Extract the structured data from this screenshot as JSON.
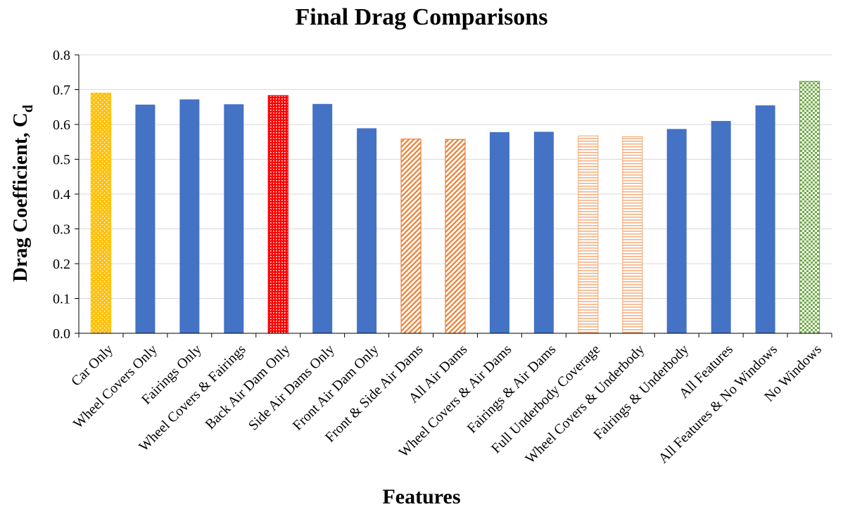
{
  "chart_data": {
    "type": "bar",
    "title": "Final Drag Comparisons",
    "xlabel": "Features",
    "ylabel": "Drag Coefficient, C",
    "ylabel_subscript": "d",
    "ylim": [
      0,
      0.8
    ],
    "yticks": [
      "0.0",
      "0.1",
      "0.2",
      "0.3",
      "0.4",
      "0.5",
      "0.6",
      "0.7",
      "0.8"
    ],
    "grid": "horizontal",
    "categories": [
      "Car Only",
      "Wheel Covers Only",
      "Fairings Only",
      "Wheel Covers & Fairings",
      "Back Air Dam Only",
      "Side Air Dams Only",
      "Front Air Dam Only",
      "Front & Side Air Dams",
      "All Air Dams",
      "Wheel Covers & Air Dams",
      "Fairings & Air Dams",
      "Full Underbody Coverage",
      "Wheel Covers & Underbody",
      "Fairings & Underbody",
      "All Features",
      "All Features & No Windows",
      "No Windows"
    ],
    "values": [
      0.69,
      0.657,
      0.672,
      0.658,
      0.683,
      0.659,
      0.589,
      0.558,
      0.557,
      0.578,
      0.579,
      0.567,
      0.565,
      0.587,
      0.61,
      0.655,
      0.724
    ],
    "bar_styles": [
      "gold-dots",
      "blue",
      "blue",
      "blue",
      "red-grid",
      "blue",
      "blue",
      "orange-diag",
      "orange-diag",
      "blue",
      "blue",
      "peach-horiz",
      "peach-horiz",
      "blue",
      "blue",
      "blue",
      "green-check"
    ],
    "colors": {
      "blue": "#4472c4",
      "gold": "#ffc000",
      "red": "#ff0000",
      "orange": "#ed7d31",
      "peach": "#f4b183",
      "green": "#70ad47",
      "grid": "#d9d9d9"
    }
  }
}
